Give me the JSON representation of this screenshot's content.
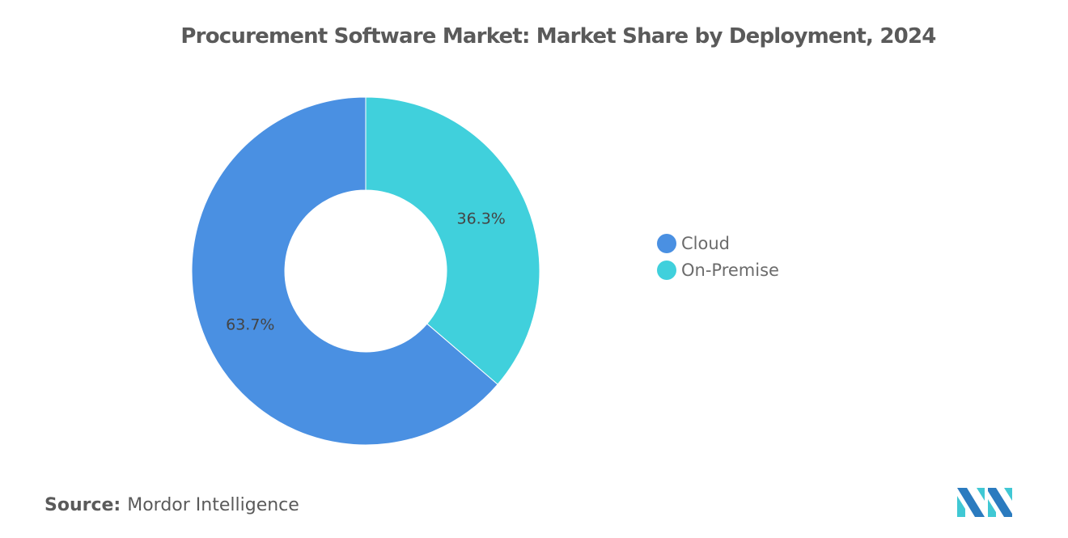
{
  "chart_data": {
    "type": "pie",
    "variant": "donut",
    "title": "Procurement Software Market: Market Share by Deployment, 2024",
    "categories": [
      "Cloud",
      "On-Premise"
    ],
    "values": [
      63.7,
      36.3
    ],
    "unit": "%",
    "data_labels": [
      "63.7%",
      "36.3%"
    ],
    "colors": [
      "#4a90e2",
      "#40d0dc"
    ],
    "legend": {
      "entries": [
        "Cloud",
        "On-Premise"
      ],
      "placement": "right"
    }
  },
  "source": {
    "label": "Source:",
    "value": "Mordor Intelligence"
  },
  "logo": {
    "name": "Mordor Intelligence logo",
    "colors": [
      "#2b7bbf",
      "#40c8d4"
    ]
  }
}
